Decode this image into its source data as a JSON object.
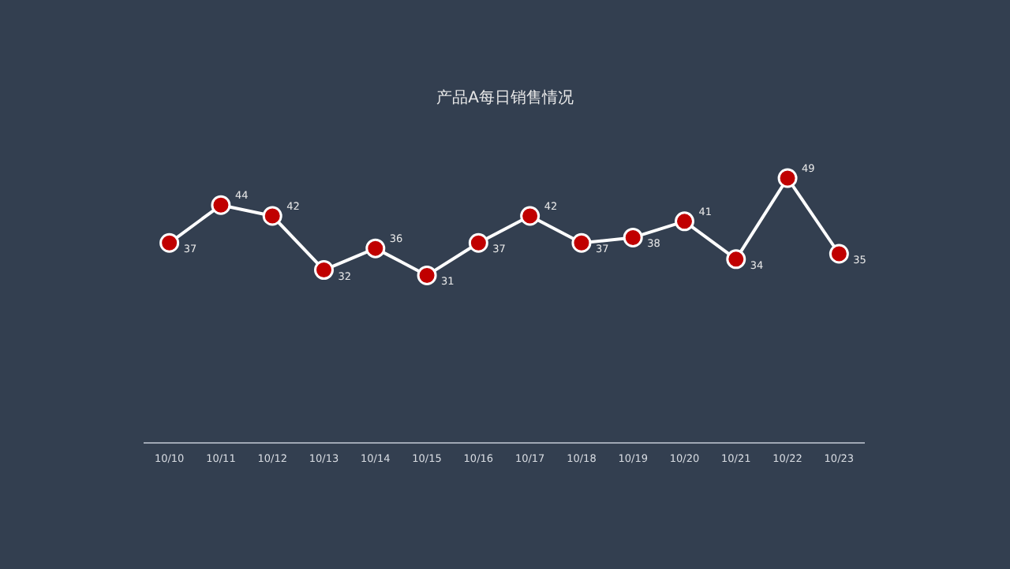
{
  "chart_data": {
    "type": "line",
    "title": "产品A每日销售情况",
    "categories": [
      "10/10",
      "10/11",
      "10/12",
      "10/13",
      "10/14",
      "10/15",
      "10/16",
      "10/17",
      "10/18",
      "10/19",
      "10/20",
      "10/21",
      "10/22",
      "10/23"
    ],
    "series": [
      {
        "color": "#c00000",
        "values": [
          37,
          44,
          42,
          32,
          36,
          31,
          37,
          42,
          37,
          38,
          41,
          34,
          49,
          35
        ]
      }
    ],
    "marker": "circle",
    "line_style": "solid",
    "data_labels": true,
    "grid": false
  }
}
